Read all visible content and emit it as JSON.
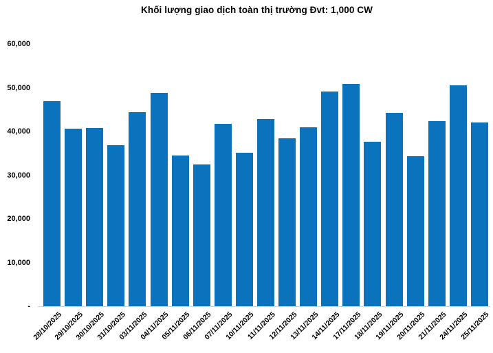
{
  "title": "Khối lượng giao dịch toàn thị trường Đvt: 1,000 CW",
  "colors": {
    "bar": "#0B72BE",
    "axis_line": "#d4d4d4",
    "text": "#000000",
    "background": "#ffffff"
  },
  "chart_data": {
    "type": "bar",
    "title": "Khối lượng giao dịch toàn thị trường Đvt: 1,000 CW",
    "xlabel": "",
    "ylabel": "",
    "unit": "1,000 CW",
    "grid": "off",
    "legend": "none",
    "ylim": [
      0,
      60000
    ],
    "y_ticks": [
      "60,000",
      "50,000",
      "40,000",
      "30,000",
      "20,000",
      "10,000",
      "-"
    ],
    "y_tick_values": [
      60000,
      50000,
      40000,
      30000,
      20000,
      10000,
      0
    ],
    "categories": [
      "28/10/2025",
      "29/10/2025",
      "30/10/2025",
      "31/10/2025",
      "03/11/2025",
      "04/11/2025",
      "05/11/2025",
      "06/11/2025",
      "07/11/2025",
      "10/11/2025",
      "11/11/2025",
      "12/11/2025",
      "13/11/2025",
      "14/11/2025",
      "17/11/2025",
      "18/11/2025",
      "19/11/2025",
      "20/11/2025",
      "21/11/2025",
      "24/11/2025",
      "25/11/2025"
    ],
    "values": [
      46900,
      40700,
      40800,
      36800,
      44400,
      48800,
      34500,
      32500,
      41800,
      35100,
      42800,
      38400,
      40900,
      49200,
      50900,
      37600,
      44200,
      34300,
      42400,
      50600,
      42100
    ]
  }
}
